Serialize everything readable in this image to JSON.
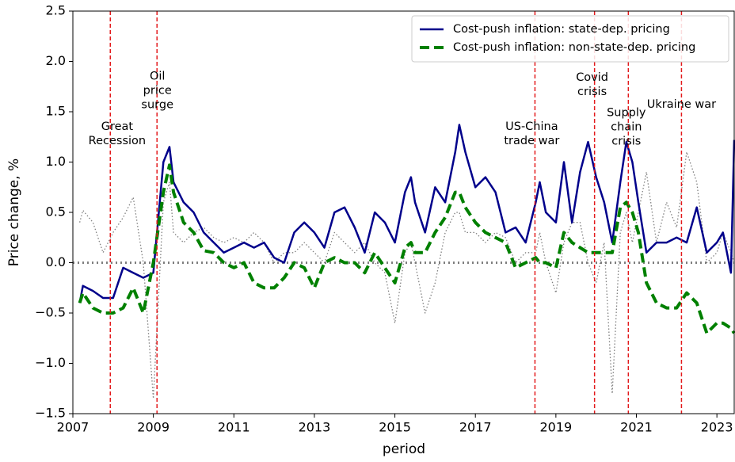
{
  "chart_data": {
    "type": "line",
    "xlabel": "period",
    "ylabel": "Price change, %",
    "xlim": [
      2007,
      2023.43
    ],
    "ylim": [
      -1.5,
      2.5
    ],
    "xticks": [
      2007,
      2009,
      2011,
      2013,
      2015,
      2017,
      2019,
      2021,
      2023
    ],
    "yticks": [
      {
        "value": -1.5,
        "label": "−1.5"
      },
      {
        "value": -1.0,
        "label": "−1.0"
      },
      {
        "value": -0.5,
        "label": "−0.5"
      },
      {
        "value": 0,
        "label": "0.0"
      },
      0.5,
      {
        "value": 1.0,
        "label": "1.0"
      },
      1.5,
      {
        "value": 2.0,
        "label": "2.0"
      },
      2.5
    ],
    "legend": "upper right",
    "hline": {
      "value": 0,
      "color": "#808080"
    },
    "vlines": {
      "values": [
        2007.93,
        2009.09,
        2018.48,
        2019.96,
        2020.8,
        2022.12
      ],
      "color": "#e31a1c"
    },
    "annotations": [
      {
        "lines": [
          "Great",
          "Recession"
        ],
        "x": 2008.1,
        "y": 1.35
      },
      {
        "lines": [
          "Oil",
          "price",
          "surge"
        ],
        "x": 2009.1,
        "y": 1.85
      },
      {
        "lines": [
          "US-China",
          "trade war"
        ],
        "x": 2018.4,
        "y": 1.35
      },
      {
        "lines": [
          "Covid",
          "crisis"
        ],
        "x": 2019.9,
        "y": 1.84
      },
      {
        "lines": [
          "Supply",
          "chain",
          "crisis"
        ],
        "x": 2020.75,
        "y": 1.49
      },
      {
        "lines": [
          "Ukraine war"
        ],
        "x": 2022.12,
        "y": 1.57
      }
    ],
    "x": [
      2007.17,
      2007.25,
      2007.5,
      2007.75,
      2008.0,
      2008.25,
      2008.5,
      2008.75,
      2009.0,
      2009.25,
      2009.4,
      2009.5,
      2009.75,
      2010.0,
      2010.25,
      2010.5,
      2010.75,
      2011.0,
      2011.25,
      2011.5,
      2011.75,
      2012.0,
      2012.25,
      2012.5,
      2012.75,
      2013.0,
      2013.25,
      2013.5,
      2013.75,
      2014.0,
      2014.25,
      2014.5,
      2014.75,
      2015.0,
      2015.25,
      2015.4,
      2015.5,
      2015.75,
      2016.0,
      2016.25,
      2016.5,
      2016.6,
      2016.75,
      2017.0,
      2017.25,
      2017.5,
      2017.75,
      2018.0,
      2018.25,
      2018.5,
      2018.6,
      2018.75,
      2019.0,
      2019.2,
      2019.4,
      2019.6,
      2019.8,
      2020.0,
      2020.2,
      2020.4,
      2020.6,
      2020.75,
      2020.9,
      2021.05,
      2021.25,
      2021.5,
      2021.75,
      2022.0,
      2022.25,
      2022.5,
      2022.75,
      2023.0,
      2023.15,
      2023.35,
      2023.43
    ],
    "series": [
      {
        "color": "#808080",
        "style": "dotted",
        "values": [
          0.4,
          0.52,
          0.4,
          0.1,
          0.3,
          0.45,
          0.65,
          0.0,
          -1.35,
          0.6,
          0.8,
          0.3,
          0.2,
          0.3,
          0.35,
          0.25,
          0.2,
          0.25,
          0.2,
          0.3,
          0.2,
          0.0,
          0.1,
          0.1,
          0.2,
          0.1,
          0.0,
          0.3,
          0.2,
          0.1,
          0.2,
          0.0,
          -0.1,
          -0.6,
          0.1,
          0.2,
          0.0,
          -0.5,
          -0.2,
          0.3,
          0.5,
          0.5,
          0.3,
          0.3,
          0.2,
          0.3,
          0.25,
          0.0,
          0.1,
          0.1,
          0.3,
          0.0,
          -0.3,
          0.2,
          0.4,
          0.4,
          0.0,
          -0.2,
          0.2,
          -1.3,
          0.3,
          0.5,
          0.2,
          0.5,
          0.9,
          0.2,
          0.6,
          0.35,
          1.1,
          0.8,
          0.0,
          0.1,
          0.3,
          0.1,
          0.0
        ]
      },
      {
        "name": "Cost-push inflation: state-dep. pricing",
        "color": "#00008b",
        "style": "solid",
        "values": [
          -0.4,
          -0.23,
          -0.28,
          -0.35,
          -0.35,
          -0.05,
          -0.1,
          -0.15,
          -0.1,
          1.0,
          1.15,
          0.8,
          0.6,
          0.5,
          0.3,
          0.2,
          0.1,
          0.15,
          0.2,
          0.15,
          0.2,
          0.05,
          0.0,
          0.3,
          0.4,
          0.3,
          0.15,
          0.5,
          0.55,
          0.35,
          0.1,
          0.5,
          0.4,
          0.2,
          0.7,
          0.85,
          0.6,
          0.3,
          0.75,
          0.6,
          1.1,
          1.37,
          1.1,
          0.75,
          0.85,
          0.7,
          0.3,
          0.35,
          0.2,
          0.6,
          0.8,
          0.5,
          0.4,
          1.0,
          0.4,
          0.9,
          1.2,
          0.85,
          0.6,
          0.2,
          0.8,
          1.2,
          1.0,
          0.6,
          0.1,
          0.2,
          0.2,
          0.25,
          0.2,
          0.55,
          0.1,
          0.2,
          0.3,
          -0.1,
          1.22
        ]
      },
      {
        "name": "Cost-push inflation: non-state-dep. pricing",
        "color": "#008000",
        "style": "dashed",
        "values": [
          -0.4,
          -0.3,
          -0.45,
          -0.5,
          -0.5,
          -0.45,
          -0.25,
          -0.5,
          0.0,
          0.7,
          0.97,
          0.7,
          0.4,
          0.3,
          0.12,
          0.1,
          0.0,
          -0.05,
          0.0,
          -0.2,
          -0.25,
          -0.25,
          -0.15,
          0.0,
          -0.05,
          -0.25,
          0.0,
          0.05,
          0.0,
          0.0,
          -0.1,
          0.1,
          -0.05,
          -0.2,
          0.15,
          0.2,
          0.1,
          0.1,
          0.3,
          0.45,
          0.7,
          0.7,
          0.55,
          0.4,
          0.3,
          0.25,
          0.2,
          -0.05,
          0.0,
          0.05,
          0.0,
          0.0,
          -0.05,
          0.3,
          0.2,
          0.15,
          0.1,
          0.1,
          0.1,
          0.1,
          0.55,
          0.6,
          0.5,
          0.3,
          -0.2,
          -0.4,
          -0.45,
          -0.45,
          -0.3,
          -0.4,
          -0.7,
          -0.6,
          -0.6,
          -0.65,
          -0.7
        ]
      }
    ]
  }
}
